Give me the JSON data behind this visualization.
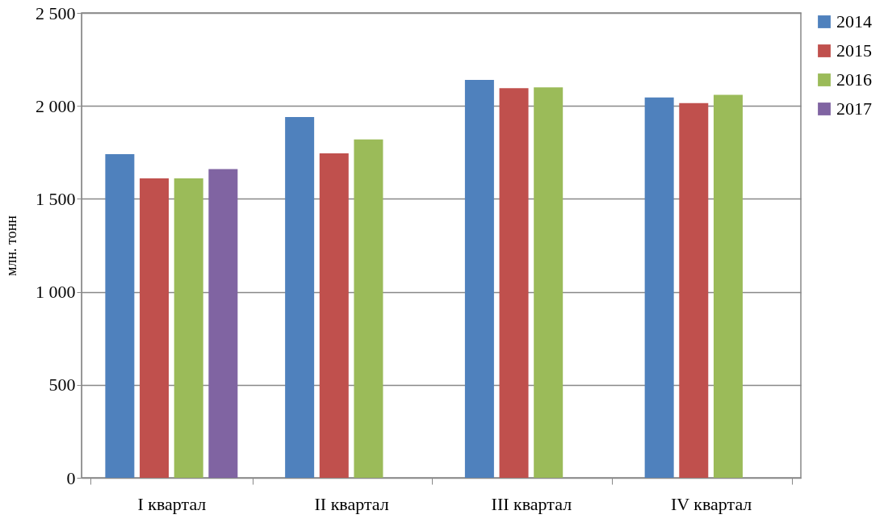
{
  "chart_data": {
    "type": "bar",
    "ylabel": "млн. тонн",
    "categories": [
      "I квартал",
      "II  квартал",
      "III  квартал",
      "IV квартал"
    ],
    "series": [
      {
        "name": "2014",
        "color": "#4f81bd",
        "values": [
          1740,
          1940,
          2140,
          2045
        ]
      },
      {
        "name": "2015",
        "color": "#c0504d",
        "values": [
          1610,
          1745,
          2095,
          2015
        ]
      },
      {
        "name": "2016",
        "color": "#9bbb59",
        "values": [
          1610,
          1820,
          2100,
          2060
        ]
      },
      {
        "name": "2017",
        "color": "#8064a2",
        "values": [
          1660,
          null,
          null,
          null
        ]
      }
    ],
    "ylim": [
      0,
      2500
    ],
    "yticks": [
      {
        "value": 0,
        "label": "0"
      },
      {
        "value": 500,
        "label": "500"
      },
      {
        "value": 1000,
        "label": "1 000"
      },
      {
        "value": 1500,
        "label": "1 500"
      },
      {
        "value": 2000,
        "label": "2 000"
      },
      {
        "value": 2500,
        "label": "2 500"
      }
    ],
    "grid": "y",
    "legend": "right"
  }
}
